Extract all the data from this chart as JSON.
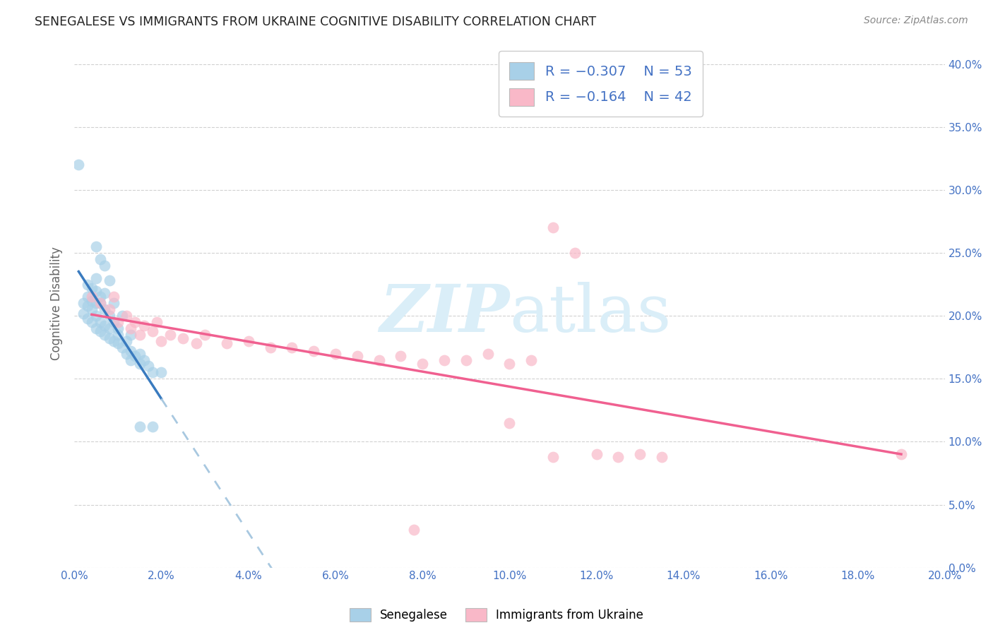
{
  "title": "SENEGALESE VS IMMIGRANTS FROM UKRAINE COGNITIVE DISABILITY CORRELATION CHART",
  "source": "Source: ZipAtlas.com",
  "ylabel": "Cognitive Disability",
  "xlim": [
    0.0,
    0.2
  ],
  "ylim": [
    0.0,
    0.42
  ],
  "color_blue": "#a8d0e8",
  "color_pink": "#f9b8c8",
  "color_blue_line": "#3a7bbf",
  "color_pink_line": "#f06090",
  "color_blue_dashed": "#a8c8e0",
  "watermark_color": "#daeef8",
  "title_color": "#222222",
  "axis_label_color": "#4472c4",
  "legend_r1": "-0.307",
  "legend_n1": "53",
  "legend_r2": "-0.164",
  "legend_n2": "42",
  "senegalese_points": [
    [
      0.001,
      0.32
    ],
    [
      0.005,
      0.255
    ],
    [
      0.006,
      0.245
    ],
    [
      0.007,
      0.24
    ],
    [
      0.005,
      0.23
    ],
    [
      0.008,
      0.228
    ],
    [
      0.003,
      0.225
    ],
    [
      0.004,
      0.222
    ],
    [
      0.005,
      0.22
    ],
    [
      0.007,
      0.218
    ],
    [
      0.003,
      0.215
    ],
    [
      0.006,
      0.215
    ],
    [
      0.004,
      0.212
    ],
    [
      0.002,
      0.21
    ],
    [
      0.005,
      0.21
    ],
    [
      0.006,
      0.21
    ],
    [
      0.009,
      0.21
    ],
    [
      0.003,
      0.208
    ],
    [
      0.004,
      0.205
    ],
    [
      0.007,
      0.205
    ],
    [
      0.002,
      0.202
    ],
    [
      0.005,
      0.2
    ],
    [
      0.008,
      0.2
    ],
    [
      0.011,
      0.2
    ],
    [
      0.003,
      0.198
    ],
    [
      0.004,
      0.195
    ],
    [
      0.006,
      0.195
    ],
    [
      0.009,
      0.195
    ],
    [
      0.007,
      0.192
    ],
    [
      0.005,
      0.19
    ],
    [
      0.008,
      0.19
    ],
    [
      0.01,
      0.19
    ],
    [
      0.006,
      0.188
    ],
    [
      0.007,
      0.185
    ],
    [
      0.01,
      0.185
    ],
    [
      0.013,
      0.185
    ],
    [
      0.008,
      0.182
    ],
    [
      0.009,
      0.18
    ],
    [
      0.012,
      0.18
    ],
    [
      0.01,
      0.178
    ],
    [
      0.011,
      0.175
    ],
    [
      0.013,
      0.172
    ],
    [
      0.012,
      0.17
    ],
    [
      0.015,
      0.17
    ],
    [
      0.014,
      0.168
    ],
    [
      0.013,
      0.165
    ],
    [
      0.016,
      0.165
    ],
    [
      0.015,
      0.162
    ],
    [
      0.017,
      0.16
    ],
    [
      0.018,
      0.155
    ],
    [
      0.015,
      0.112
    ],
    [
      0.018,
      0.112
    ],
    [
      0.02,
      0.155
    ]
  ],
  "ukraine_points": [
    [
      0.004,
      0.215
    ],
    [
      0.006,
      0.21
    ],
    [
      0.008,
      0.205
    ],
    [
      0.009,
      0.215
    ],
    [
      0.01,
      0.195
    ],
    [
      0.012,
      0.2
    ],
    [
      0.013,
      0.19
    ],
    [
      0.014,
      0.195
    ],
    [
      0.015,
      0.185
    ],
    [
      0.016,
      0.192
    ],
    [
      0.018,
      0.188
    ],
    [
      0.019,
      0.195
    ],
    [
      0.02,
      0.18
    ],
    [
      0.022,
      0.185
    ],
    [
      0.025,
      0.182
    ],
    [
      0.028,
      0.178
    ],
    [
      0.03,
      0.185
    ],
    [
      0.035,
      0.178
    ],
    [
      0.04,
      0.18
    ],
    [
      0.045,
      0.175
    ],
    [
      0.05,
      0.175
    ],
    [
      0.055,
      0.172
    ],
    [
      0.06,
      0.17
    ],
    [
      0.065,
      0.168
    ],
    [
      0.07,
      0.165
    ],
    [
      0.075,
      0.168
    ],
    [
      0.08,
      0.162
    ],
    [
      0.085,
      0.165
    ],
    [
      0.09,
      0.165
    ],
    [
      0.095,
      0.17
    ],
    [
      0.1,
      0.162
    ],
    [
      0.105,
      0.165
    ],
    [
      0.11,
      0.27
    ],
    [
      0.115,
      0.25
    ],
    [
      0.12,
      0.09
    ],
    [
      0.125,
      0.088
    ],
    [
      0.13,
      0.09
    ],
    [
      0.135,
      0.088
    ],
    [
      0.1,
      0.115
    ],
    [
      0.11,
      0.088
    ],
    [
      0.078,
      0.03
    ],
    [
      0.19,
      0.09
    ]
  ]
}
